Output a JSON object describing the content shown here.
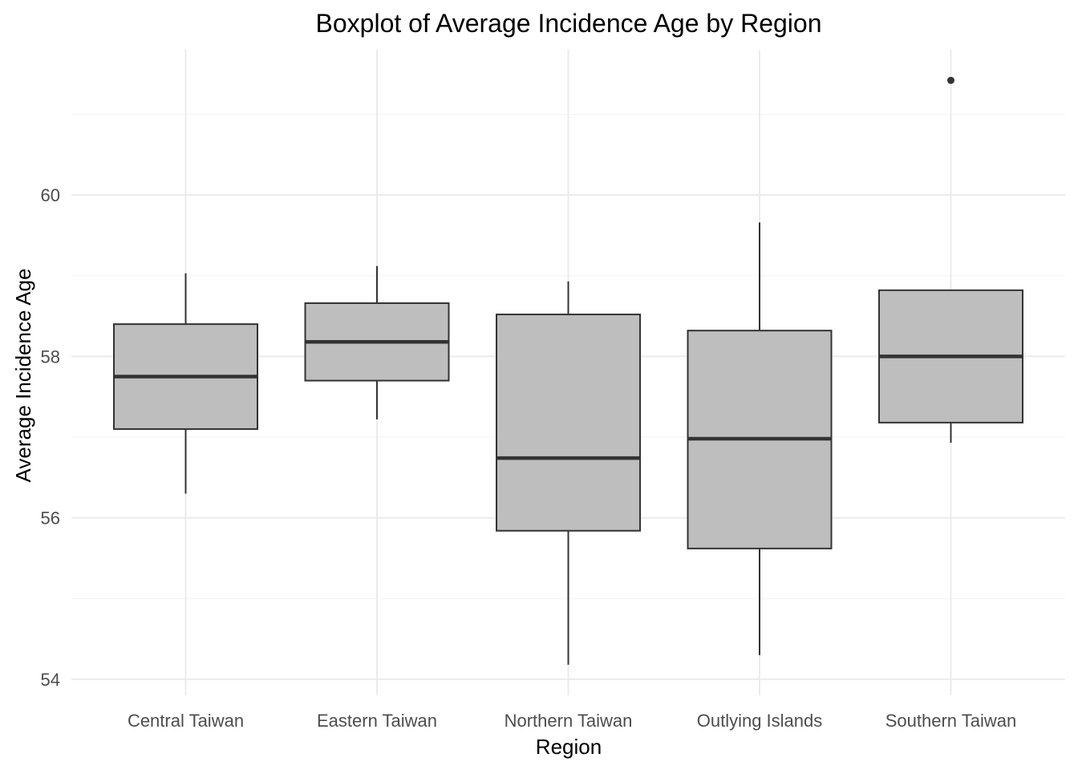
{
  "chart_data": {
    "type": "boxplot",
    "title": "Boxplot of Average Incidence Age by Region",
    "xlabel": "Region",
    "ylabel": "Average Incidence Age",
    "ylim": [
      53.8,
      61.8
    ],
    "yticks": [
      54,
      56,
      58,
      60
    ],
    "grid": true,
    "legend": "none",
    "colors": {
      "box_fill": "#bebebe",
      "box_line": "#333333",
      "grid_major": "#ebebeb",
      "grid_minor": "#f3f3f3",
      "outlier": "#333333"
    },
    "categories": [
      "Central Taiwan",
      "Eastern Taiwan",
      "Northern Taiwan",
      "Outlying Islands",
      "Southern Taiwan"
    ],
    "boxes": [
      {
        "min": 56.3,
        "q1": 57.1,
        "median": 57.75,
        "q3": 58.4,
        "max": 59.03,
        "outliers": []
      },
      {
        "min": 57.22,
        "q1": 57.7,
        "median": 58.18,
        "q3": 58.66,
        "max": 59.12,
        "outliers": []
      },
      {
        "min": 54.18,
        "q1": 55.84,
        "median": 56.74,
        "q3": 58.52,
        "max": 58.93,
        "outliers": []
      },
      {
        "min": 54.3,
        "q1": 55.62,
        "median": 56.98,
        "q3": 58.32,
        "max": 59.66,
        "outliers": []
      },
      {
        "min": 56.93,
        "q1": 57.18,
        "median": 58.0,
        "q3": 58.82,
        "max": 58.82,
        "outliers": [
          61.42
        ]
      }
    ]
  }
}
